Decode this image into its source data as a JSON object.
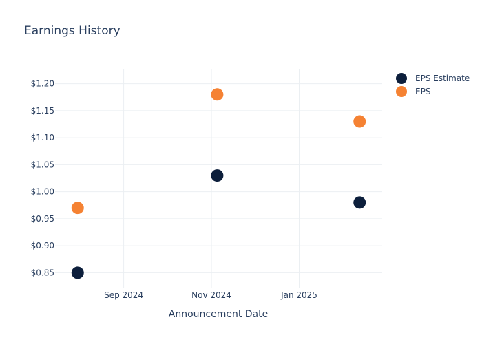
{
  "chart_data": {
    "type": "scatter",
    "title": "Earnings History",
    "xlabel": "Announcement Date",
    "ylabel": "",
    "x_ticks": [
      "Sep 2024",
      "Nov 2024",
      "Jan 2025"
    ],
    "y_ticks": [
      "$0.85",
      "$0.90",
      "$0.95",
      "$1.00",
      "$1.05",
      "$1.10",
      "$1.15",
      "$1.20"
    ],
    "ylim": [
      0.8225,
      1.2275
    ],
    "grid": true,
    "legend_position": "top-right",
    "series": [
      {
        "name": "EPS Estimate",
        "color": "#0d1f3c",
        "points": [
          {
            "x": "2024-07-31",
            "y": 0.85
          },
          {
            "x": "2024-11-05",
            "y": 1.03
          },
          {
            "x": "2025-02-12",
            "y": 0.98
          }
        ]
      },
      {
        "name": "EPS",
        "color": "#f58233",
        "points": [
          {
            "x": "2024-07-31",
            "y": 0.97
          },
          {
            "x": "2024-11-05",
            "y": 1.18
          },
          {
            "x": "2025-02-12",
            "y": 1.13
          }
        ]
      }
    ]
  }
}
